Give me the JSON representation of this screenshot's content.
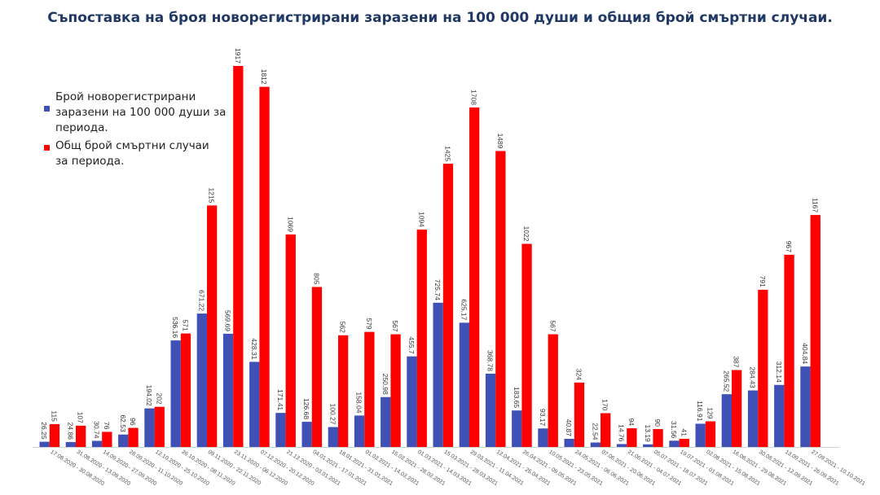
{
  "chart_data": {
    "type": "bar",
    "title": "Съпоставка на броя новорегистрирани заразени на 100 000 души и общия брой смъртни случаи.",
    "categories": [
      "17.08.2020 - 30.08.2020",
      "31.08.2020 - 13.09.2020",
      "14.09.2020 - 27.09.2020",
      "28.09.2020 - 11.10.2020",
      "12.10.2020 - 25.10.2020",
      "26.10.2020 - 08.11.2020",
      "09.11.2020 - 22.11.2020",
      "23.11.2020 - 06.12.2020",
      "07.12.2020 - 20.12.2020",
      "21.12.2020 - 03.01.2021",
      "04.01.2021 - 17.01.2021",
      "18.01.2021 - 31.01.2021",
      "01.02.2021 - 14.02.2021",
      "15.02.2021 - 28.02.2021",
      "01.03.2021 - 14.03.2021",
      "15.03.2021 - 28.03.2021",
      "29.03.2021 - 11.04.2021",
      "12.04.2021 - 25.04.2021",
      "26.04.2021 - 09.05.2021",
      "10.05.2021 - 23.05.2021",
      "24.05.2021 - 06.06.2021",
      "07.06.2021 - 20.06.2021",
      "21.06.2021 - 04.07.2021",
      "05.07.2021 - 18.07.2021",
      "19.07.2021 - 01.08.2021",
      "02.08.2021 - 15.08.2021",
      "16.08.2021 - 29.08.2021",
      "30.08.2021 - 12.09.2021",
      "13.09.2021 - 26.09.2021",
      "27.09.2021 - 10.10.2021"
    ],
    "series": [
      {
        "name": "Брой новорегистрирани заразени на 100 000 души за периода.",
        "color": "#3f51b5",
        "values": [
          26.25,
          24.86,
          30.74,
          62.53,
          194.02,
          536.16,
          671.22,
          569.69,
          428.31,
          171.41,
          126.68,
          100.27,
          158.04,
          250.98,
          455.7,
          725.74,
          625.17,
          368.78,
          183.65,
          93.17,
          40.87,
          22.54,
          14.76,
          13.19,
          31.56,
          116.91,
          265.52,
          284.43,
          312.14,
          404.84
        ],
        "labels": [
          "26.25",
          "24.86",
          "30.74",
          "62.53",
          "194.02",
          "536.16",
          "671.22",
          "569.69",
          "428.31",
          "171.41",
          "126.68",
          "100.27",
          "158.04",
          "250.98",
          "455.7",
          "725.74",
          "625.17",
          "368.78",
          "183.65",
          "93.17",
          "40.87",
          "22.54",
          "14.76",
          "13.19",
          "31.56",
          "116.91",
          "265.52",
          "284.43",
          "312.14",
          "404.84"
        ]
      },
      {
        "name": "Общ брой смъртни случаи за периода.",
        "color": "#ff0000",
        "values": [
          115,
          107,
          76,
          96,
          202,
          571,
          1215,
          1917,
          1812,
          1069,
          805,
          562,
          579,
          567,
          1094,
          1425,
          1708,
          1489,
          1022,
          567,
          324,
          170,
          94,
          90,
          41,
          129,
          387,
          791,
          967,
          1167
        ],
        "labels": [
          "115",
          "107",
          "76",
          "96",
          "202",
          "571",
          "1215",
          "1917",
          "1812",
          "1069",
          "805",
          "562",
          "579",
          "567",
          "1094",
          "1425",
          "1708",
          "1489",
          "1022",
          "567",
          "324",
          "170",
          "94",
          "90",
          "41",
          "129",
          "387",
          "791",
          "967",
          "1167"
        ]
      }
    ],
    "legend": "left",
    "grid": false
  }
}
